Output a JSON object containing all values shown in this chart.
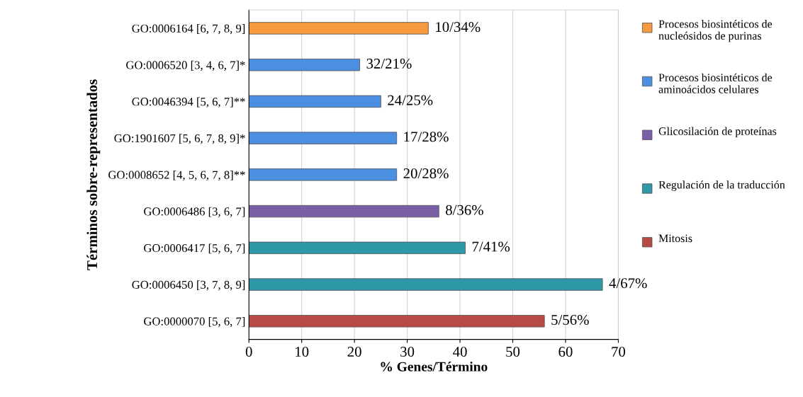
{
  "chart_data": {
    "type": "bar",
    "orientation": "horizontal",
    "xlabel": "% Genes/Término",
    "ylabel": "Términos sobre-representados",
    "categories": [
      "GO:0006164 [6, 7, 8, 9]",
      "GO:0006520 [3, 4, 6, 7]*",
      "GO:0046394 [5, 6, 7]**",
      "GO:1901607 [5, 6, 7, 8, 9]*",
      "GO:0008652 [4, 5, 6, 7, 8]**",
      "GO:0006486 [3, 6, 7]",
      "GO:0006417 [5, 6, 7]",
      "GO:0006450 [3, 7, 8, 9]",
      "GO:0000070 [5, 6, 7]"
    ],
    "series": [
      {
        "name": "Procesos biosintéticos de nucleósidos de purinas",
        "color": "#f79a3e",
        "values": [
          34,
          null,
          null,
          null,
          null,
          null,
          null,
          null,
          null
        ],
        "value_labels": [
          "10/34%",
          null,
          null,
          null,
          null,
          null,
          null,
          null,
          null
        ]
      },
      {
        "name": "Procesos biosintéticos de aminoácidos celulares",
        "color": "#4a8fe0",
        "values": [
          null,
          21,
          25,
          28,
          28,
          null,
          null,
          null,
          null
        ],
        "value_labels": [
          null,
          "32/21%",
          "24/25%",
          "17/28%",
          "20/28%",
          null,
          null,
          null,
          null
        ]
      },
      {
        "name": "Glicosilación de proteínas",
        "color": "#7a5ea6",
        "values": [
          null,
          null,
          null,
          null,
          null,
          36,
          null,
          null,
          null
        ],
        "value_labels": [
          null,
          null,
          null,
          null,
          null,
          "8/36%",
          null,
          null,
          null
        ]
      },
      {
        "name": "Regulación de la traducción",
        "color": "#2e97a8",
        "values": [
          null,
          null,
          null,
          null,
          null,
          null,
          41,
          67,
          null
        ],
        "value_labels": [
          null,
          null,
          null,
          null,
          null,
          null,
          "7/41%",
          "4/67%",
          null
        ]
      },
      {
        "name": "Mitosis",
        "color": "#b84a46",
        "values": [
          null,
          null,
          null,
          null,
          null,
          null,
          null,
          null,
          56
        ],
        "value_labels": [
          null,
          null,
          null,
          null,
          null,
          null,
          null,
          null,
          "5/56%"
        ]
      }
    ],
    "xlim": [
      0,
      70
    ],
    "xticks": [
      0,
      10,
      20,
      30,
      40,
      50,
      60,
      70
    ],
    "grid": "x",
    "legend": "right"
  }
}
